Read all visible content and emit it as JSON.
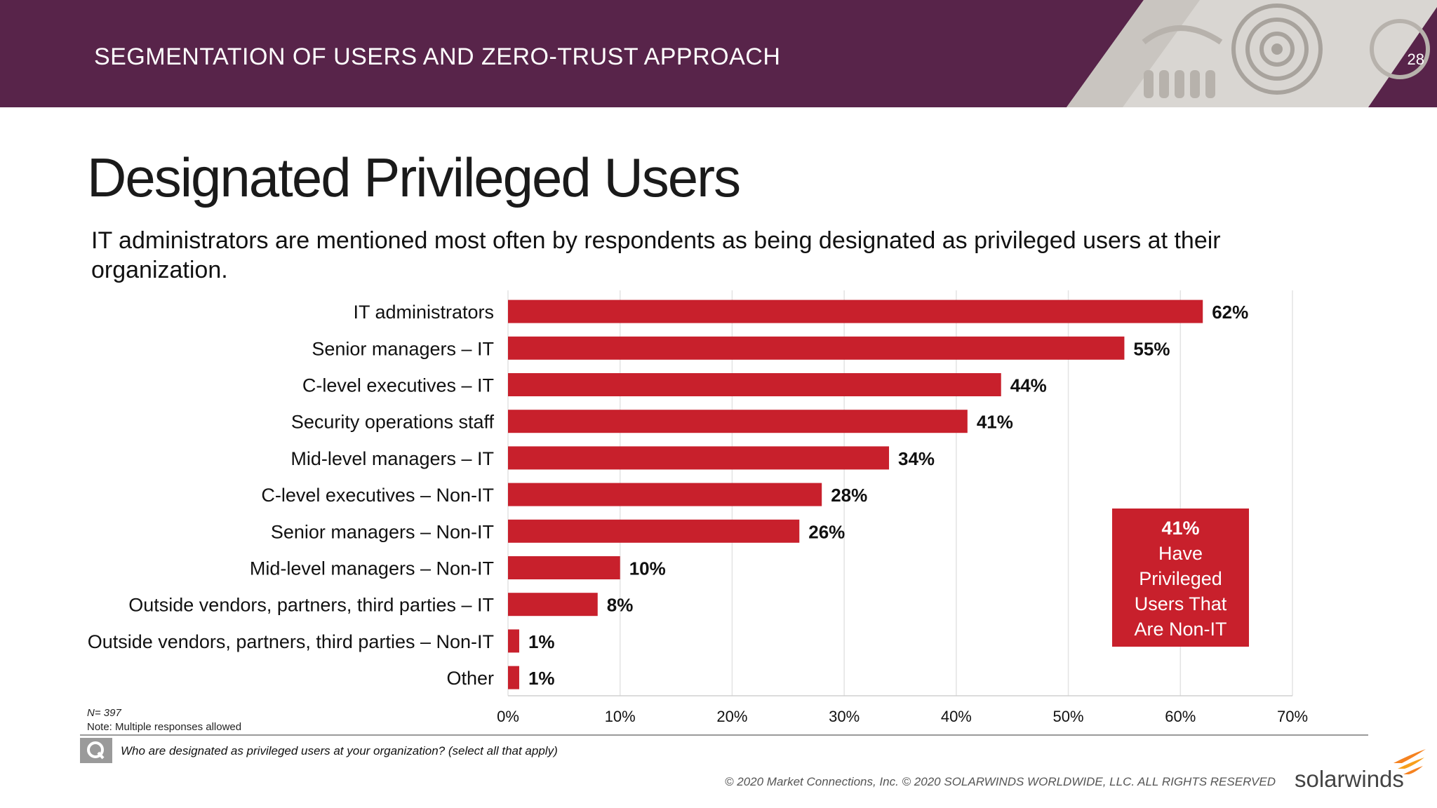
{
  "header": {
    "title": "SEGMENTATION OF USERS AND ZERO-TRUST APPROACH",
    "page_number": "28",
    "bg_color": "#58244a"
  },
  "slide": {
    "title": "Designated Privileged Users",
    "subtitle": "IT administrators are mentioned most often by respondents as being designated as privileged users at their organization."
  },
  "chart_data": {
    "type": "bar",
    "orientation": "horizontal",
    "categories": [
      "IT administrators",
      "Senior managers – IT",
      "C-level executives – IT",
      "Security operations staff",
      "Mid-level managers – IT",
      "C-level executives – Non-IT",
      "Senior managers – Non-IT",
      "Mid-level managers – Non-IT",
      "Outside vendors, partners, third parties – IT",
      "Outside vendors, partners, third parties – Non-IT",
      "Other"
    ],
    "values": [
      62,
      55,
      44,
      41,
      34,
      28,
      26,
      10,
      8,
      1,
      1
    ],
    "value_labels": [
      "62%",
      "55%",
      "44%",
      "41%",
      "34%",
      "28%",
      "26%",
      "10%",
      "8%",
      "1%",
      "1%"
    ],
    "xlim": [
      0,
      70
    ],
    "x_ticks": [
      0,
      10,
      20,
      30,
      40,
      50,
      60,
      70
    ],
    "x_tick_labels": [
      "0%",
      "10%",
      "20%",
      "30%",
      "40%",
      "50%",
      "60%",
      "70%"
    ],
    "bar_color": "#c8202c",
    "grid": true
  },
  "callout": {
    "percent": "41%",
    "text": "Have Privileged Users That Are Non-IT",
    "color": "#c8202c"
  },
  "notes": {
    "n": "N= 397",
    "multiple": "Note: Multiple responses allowed"
  },
  "question": {
    "icon": "q-icon",
    "text": "Who are designated as privileged users at your organization? (select all that apply)"
  },
  "footer": {
    "copyright": "© 2020 Market Connections, Inc. © 2020 SOLARWINDS WORLDWIDE, LLC. ALL RIGHTS RESERVED",
    "logo": "solarwinds",
    "logo_accent": "#f58220"
  }
}
